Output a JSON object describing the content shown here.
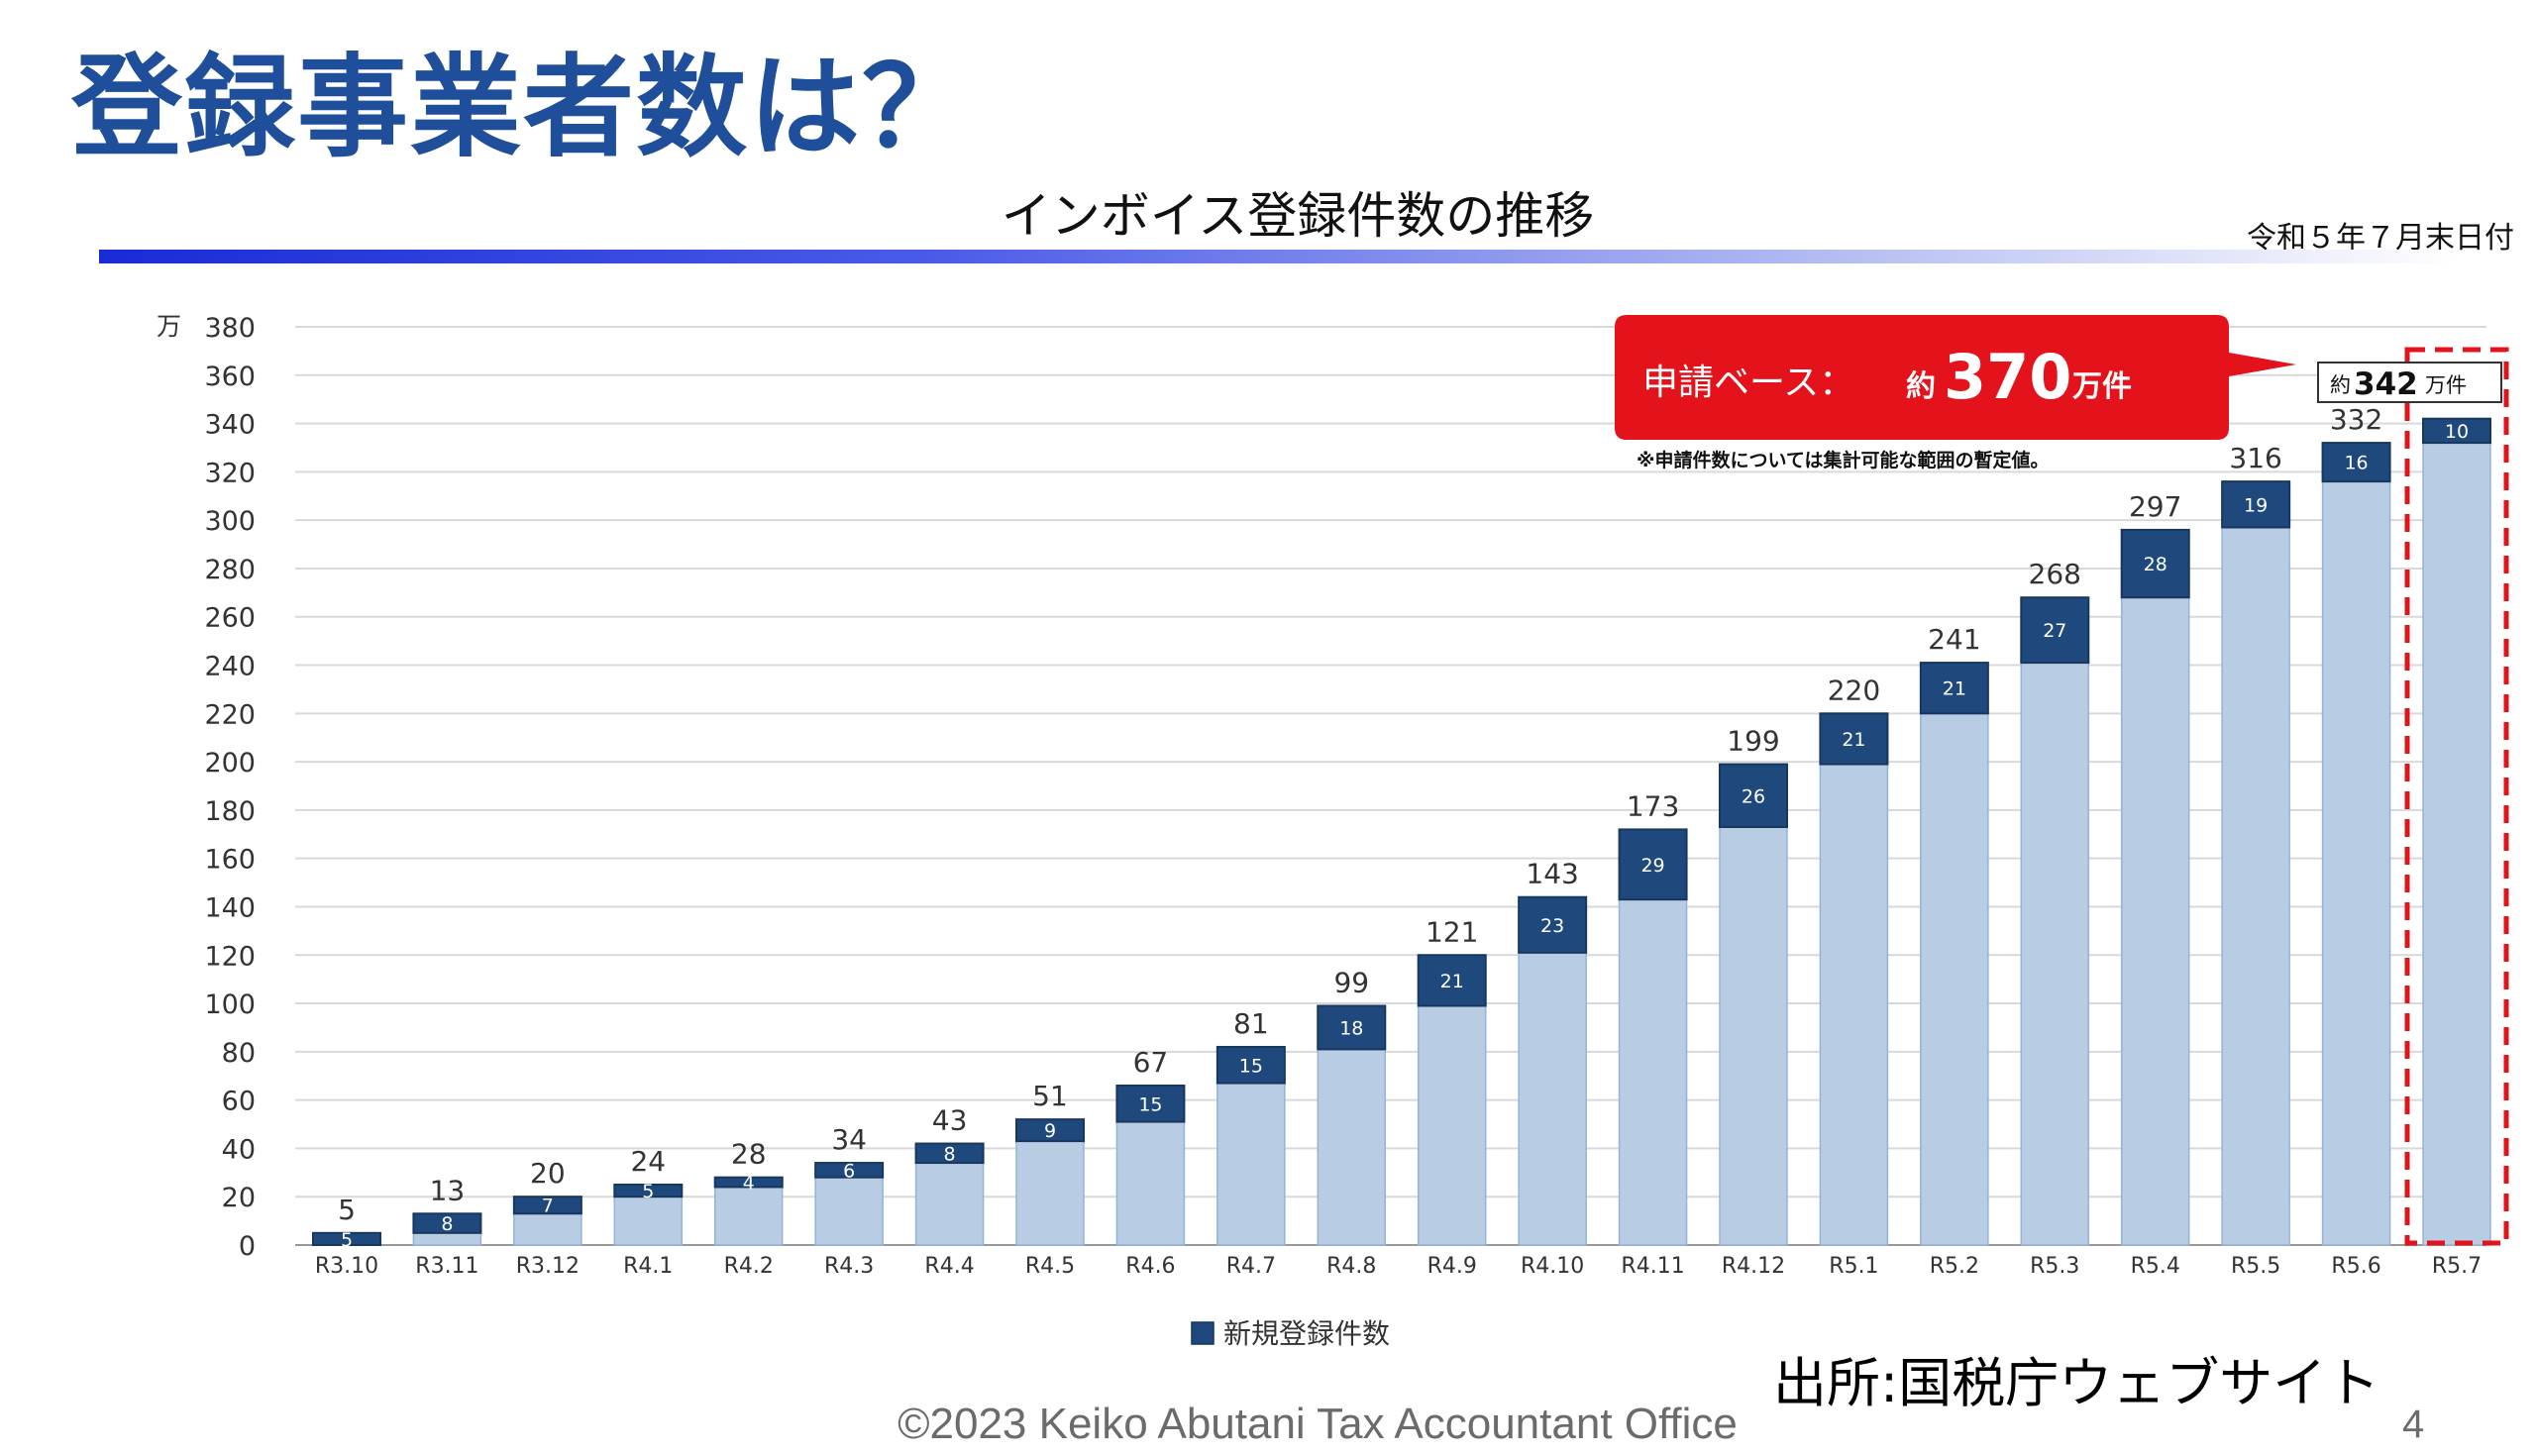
{
  "slide": {
    "title": "登録事業者数は？",
    "source": "出所:国税庁ウェブサイト",
    "footer": "©2023   Keiko Abutani Tax Accountant Office",
    "page_number": "4"
  },
  "chart_data": {
    "type": "bar",
    "title": "インボイス登録件数の推移",
    "date_note": "令和５年７月末日付",
    "y_unit": "万",
    "ylim": [
      0,
      380
    ],
    "yticks": [
      0,
      20,
      40,
      60,
      80,
      100,
      120,
      140,
      160,
      180,
      200,
      220,
      240,
      260,
      280,
      300,
      320,
      340,
      360,
      380
    ],
    "grid": true,
    "categories": [
      "R3.10",
      "R3.11",
      "R3.12",
      "R4.1",
      "R4.2",
      "R4.3",
      "R4.4",
      "R4.5",
      "R4.6",
      "R4.7",
      "R4.8",
      "R4.9",
      "R4.10",
      "R4.11",
      "R4.12",
      "R5.1",
      "R5.2",
      "R5.3",
      "R5.4",
      "R5.5",
      "R5.6",
      "R5.7"
    ],
    "totals": [
      5,
      13,
      20,
      24,
      28,
      34,
      43,
      51,
      67,
      81,
      99,
      121,
      143,
      173,
      199,
      220,
      241,
      268,
      297,
      316,
      332,
      342
    ],
    "total_labels": [
      "5",
      "13",
      "20",
      "24",
      "28",
      "34",
      "43",
      "51",
      "67",
      "81",
      "99",
      "121",
      "143",
      "173",
      "199",
      "220",
      "241",
      "268",
      "297",
      "316",
      "332",
      ""
    ],
    "series": [
      {
        "name": "",
        "color": "#b8cce4",
        "values": [
          0,
          5,
          13,
          20,
          24,
          28,
          34,
          43,
          51,
          67,
          81,
          99,
          121,
          143,
          173,
          199,
          220,
          241,
          268,
          297,
          316,
          332
        ]
      },
      {
        "name": "新規登録件数",
        "color": "#1f497d",
        "values": [
          5,
          8,
          7,
          5,
          4,
          6,
          8,
          9,
          15,
          15,
          18,
          21,
          23,
          29,
          26,
          21,
          21,
          27,
          28,
          19,
          16,
          10
        ]
      }
    ],
    "legend": {
      "label": "新規登録件数",
      "position": "bottom-center"
    },
    "callout": {
      "prefix": "申請ベース：",
      "approx": "約",
      "value": "370",
      "unit": "万件",
      "color": "#e3121b",
      "note": "※申請件数については集計可能な範囲の暫定値。"
    },
    "highlight": {
      "category": "R5.7",
      "approx": "約",
      "value": "342",
      "unit": "万件",
      "border_color": "#e3121b"
    }
  }
}
